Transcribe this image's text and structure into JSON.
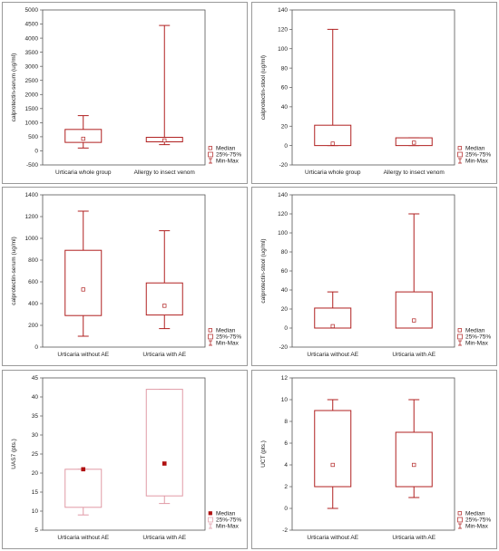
{
  "chart_data": [
    {
      "type": "box",
      "ylabel": "calprotectin-serum (ug/ml)",
      "ylim": [
        -500,
        5000
      ],
      "yticks": [
        -500,
        0,
        500,
        1000,
        1500,
        2000,
        2500,
        3000,
        3500,
        4000,
        4500,
        5000
      ],
      "categories": [
        "Urticaria whole group",
        "Allergy to insect venom"
      ],
      "series": [
        {
          "min": 100,
          "q1": 300,
          "median": 430,
          "q3": 760,
          "max": 1250
        },
        {
          "min": 220,
          "q1": 320,
          "median": 370,
          "q3": 480,
          "max": 4450
        }
      ],
      "legend": [
        "Median",
        "25%-75%",
        "Min-Max"
      ],
      "box_color": "#b02020"
    },
    {
      "type": "box",
      "ylabel": "calprotectin-stool (ug/ml)",
      "ylim": [
        -20,
        140
      ],
      "yticks": [
        -20,
        0,
        20,
        40,
        60,
        80,
        100,
        120,
        140
      ],
      "categories": [
        "Urticaria whole group",
        "Allergy to insect venom"
      ],
      "series": [
        {
          "min": 0,
          "q1": 0,
          "median": 2,
          "q3": 21,
          "max": 120
        },
        {
          "min": 0,
          "q1": 0,
          "median": 3,
          "q3": 8,
          "max": 8
        }
      ],
      "legend": [
        "Median",
        "25%-75%",
        "Min-Max"
      ],
      "box_color": "#b02020"
    },
    {
      "type": "box",
      "ylabel": "calprotectin-serum (ug/ml)",
      "ylim": [
        0,
        1400
      ],
      "yticks": [
        0,
        200,
        400,
        600,
        800,
        1000,
        1200,
        1400
      ],
      "categories": [
        "Urticaria without AE",
        "Urticaria with AE"
      ],
      "series": [
        {
          "min": 100,
          "q1": 290,
          "median": 530,
          "q3": 890,
          "max": 1250
        },
        {
          "min": 170,
          "q1": 295,
          "median": 380,
          "q3": 590,
          "max": 1070
        }
      ],
      "legend": [
        "Median",
        "25%-75%",
        "Min-Max"
      ],
      "box_color": "#b02020"
    },
    {
      "type": "box",
      "ylabel": "calprotectin-stool (ug/ml)",
      "ylim": [
        -20,
        140
      ],
      "yticks": [
        -20,
        0,
        20,
        40,
        60,
        80,
        100,
        120,
        140
      ],
      "categories": [
        "Urticaria without AE",
        "Urticaria with AE"
      ],
      "series": [
        {
          "min": 0,
          "q1": 0,
          "median": 2,
          "q3": 21,
          "max": 38
        },
        {
          "min": 0,
          "q1": 0,
          "median": 8,
          "q3": 38,
          "max": 120
        }
      ],
      "legend": [
        "Median",
        "25%-75%",
        "Min-Max"
      ],
      "box_color": "#b02020"
    },
    {
      "type": "box",
      "ylabel": "UAS7 (pts.)",
      "ylim": [
        5,
        45
      ],
      "yticks": [
        5,
        10,
        15,
        20,
        25,
        30,
        35,
        40,
        45
      ],
      "categories": [
        "Urticaria without AE",
        "Urticaria with AE"
      ],
      "series": [
        {
          "min": 9,
          "q1": 11,
          "median": 21,
          "q3": 21,
          "max": 21
        },
        {
          "min": 12,
          "q1": 14,
          "median": 22.5,
          "q3": 42,
          "max": 42
        }
      ],
      "legend": [
        "Median",
        "25%-75%",
        "Min-Max"
      ],
      "box_color": "#e09aa6",
      "median_color": "#b01010",
      "median_filled": true
    },
    {
      "type": "box",
      "ylabel": "UCT (pts.)",
      "ylim": [
        -2,
        12
      ],
      "yticks": [
        -2,
        0,
        2,
        4,
        6,
        8,
        10,
        12
      ],
      "categories": [
        "Urticaria without AE",
        "Urticaria with AE"
      ],
      "series": [
        {
          "min": 0,
          "q1": 2,
          "median": 4,
          "q3": 9,
          "max": 10
        },
        {
          "min": 1,
          "q1": 2,
          "median": 4,
          "q3": 7,
          "max": 10
        }
      ],
      "legend": [
        "Median",
        "25%-75%",
        "Min-Max"
      ],
      "box_color": "#b02020"
    }
  ]
}
